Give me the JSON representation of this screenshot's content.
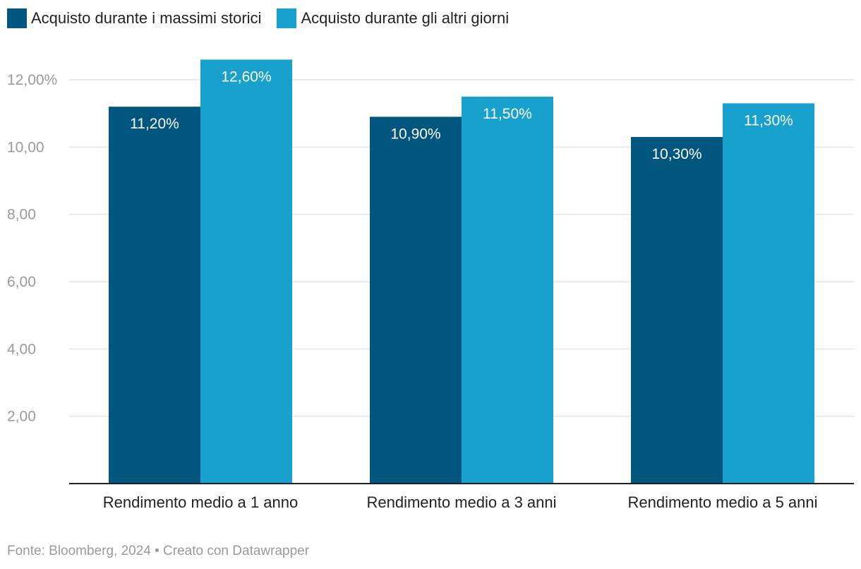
{
  "colors": {
    "series1": "#015680",
    "series2": "#18a1cd",
    "grid": "#e4e4e4",
    "axis": "#222222"
  },
  "legend": [
    {
      "label": "Acquisto durante i massimi storici"
    },
    {
      "label": "Acquisto durante gli altri giorni"
    }
  ],
  "chart_data": {
    "type": "bar",
    "categories": [
      "Rendimento medio a 1 anno",
      "Rendimento medio a 3 anni",
      "Rendimento medio a 5 anni"
    ],
    "series": [
      {
        "name": "Acquisto durante i massimi storici",
        "values": [
          11.2,
          10.9,
          10.3
        ],
        "labels": [
          "11,20%",
          "10,90%",
          "10,30%"
        ]
      },
      {
        "name": "Acquisto durante gli altri giorni",
        "values": [
          12.6,
          11.5,
          11.3
        ],
        "labels": [
          "12,60%",
          "11,50%",
          "11,30%"
        ]
      }
    ],
    "ylim": [
      0,
      12
    ],
    "yticks": [
      {
        "value": 2,
        "label": "2,00"
      },
      {
        "value": 4,
        "label": "4,00"
      },
      {
        "value": 6,
        "label": "6,00"
      },
      {
        "value": 8,
        "label": "8,00"
      },
      {
        "value": 10,
        "label": "10,00"
      },
      {
        "value": 12,
        "label": "12,00%"
      }
    ],
    "grid": true,
    "legend_position": "top-left",
    "title": "",
    "xlabel": "",
    "ylabel": ""
  },
  "footer": {
    "text": "Fonte: Bloomberg, 2024 • Creato con Datawrapper"
  }
}
